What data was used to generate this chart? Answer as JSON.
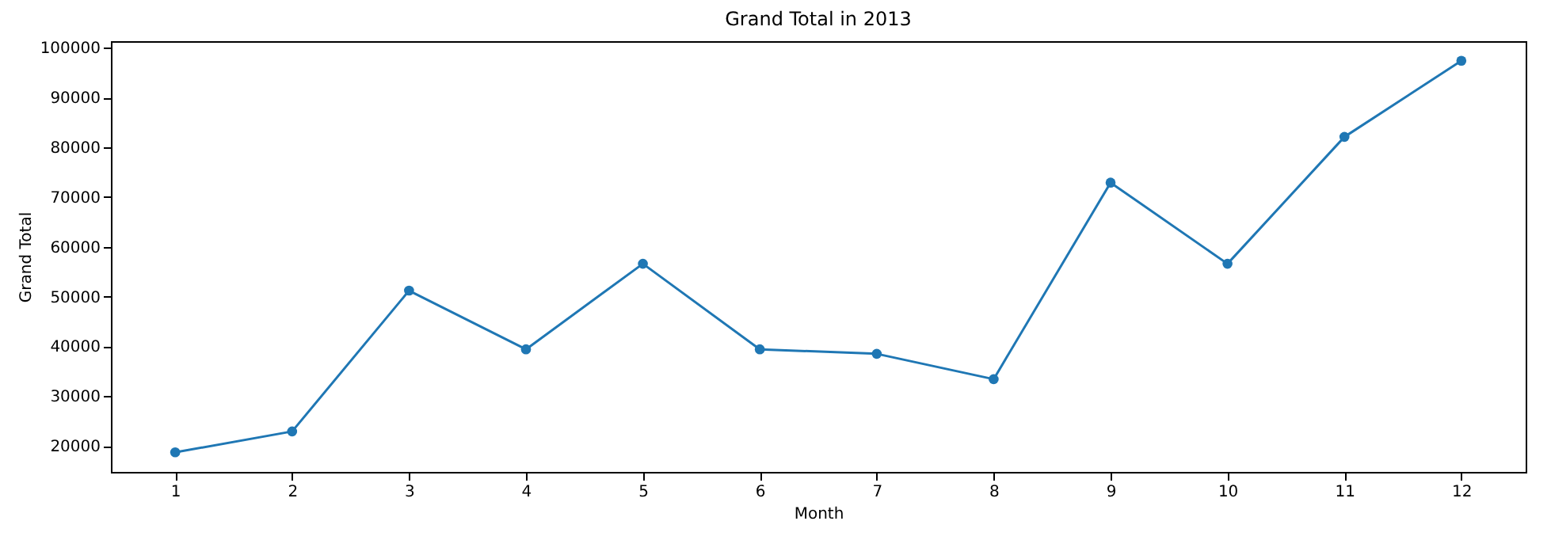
{
  "chart_data": {
    "type": "line",
    "title": "Grand Total in 2013",
    "xlabel": "Month",
    "ylabel": "Grand Total",
    "x": [
      1,
      2,
      3,
      4,
      5,
      6,
      7,
      8,
      9,
      10,
      11,
      12
    ],
    "series": [
      {
        "color": "#1f77b4",
        "values": [
          18700,
          22900,
          51200,
          39400,
          56600,
          39400,
          38500,
          33400,
          72900,
          56600,
          82100,
          97400
        ]
      }
    ],
    "xlim": [
      0.45,
      12.55
    ],
    "xticks": [
      1,
      2,
      3,
      4,
      5,
      6,
      7,
      8,
      9,
      10,
      11,
      12
    ],
    "ylim": [
      14765,
      101335
    ],
    "yticks": [
      20000,
      30000,
      40000,
      50000,
      60000,
      70000,
      80000,
      90000,
      100000
    ],
    "grid": false,
    "marker": "circle",
    "line_style": "solid"
  }
}
